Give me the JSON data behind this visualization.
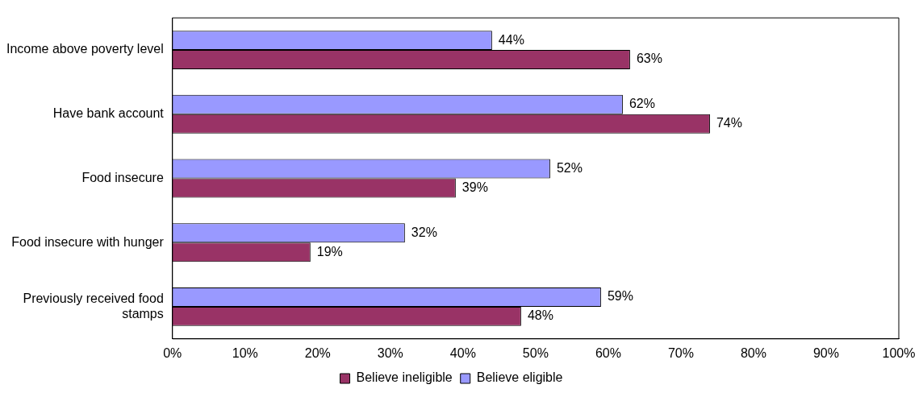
{
  "chart_data": {
    "type": "bar",
    "orientation": "horizontal",
    "categories": [
      "Income above poverty level",
      "Have bank account",
      "Food insecure",
      "Food insecure with hunger",
      "Previously received food stamps"
    ],
    "series": [
      {
        "name": "Believe ineligible",
        "color": "#993366",
        "values": [
          63,
          74,
          39,
          19,
          48
        ],
        "value_labels": [
          "63%",
          "74%",
          "39%",
          "19%",
          "48%"
        ]
      },
      {
        "name": "Believe eligible",
        "color": "#9999ff",
        "values": [
          44,
          62,
          52,
          32,
          59
        ],
        "value_labels": [
          "44%",
          "62%",
          "52%",
          "32%",
          "59%"
        ]
      }
    ],
    "xlim": [
      0,
      100
    ],
    "xticks": [
      {
        "value": 0,
        "label": "0%"
      },
      {
        "value": 10,
        "label": "10%"
      },
      {
        "value": 20,
        "label": "20%"
      },
      {
        "value": 30,
        "label": "30%"
      },
      {
        "value": 40,
        "label": "40%"
      },
      {
        "value": 50,
        "label": "50%"
      },
      {
        "value": 60,
        "label": "60%"
      },
      {
        "value": 70,
        "label": "70%"
      },
      {
        "value": 80,
        "label": "80%"
      },
      {
        "value": 90,
        "label": "90%"
      },
      {
        "value": 100,
        "label": "100%"
      }
    ],
    "grid": false,
    "legend": "bottom"
  }
}
